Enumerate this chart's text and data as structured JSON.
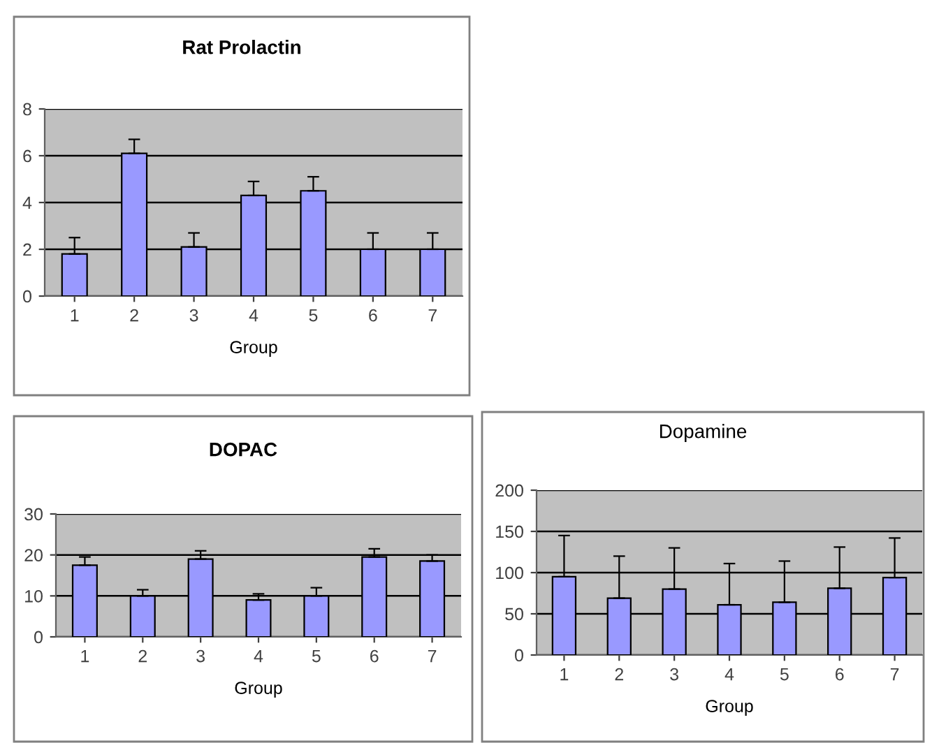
{
  "chart_data": [
    {
      "type": "bar",
      "title": "Rat Prolactin",
      "xlabel": "Group",
      "categories": [
        "1",
        "2",
        "3",
        "4",
        "5",
        "6",
        "7"
      ],
      "values": [
        1.8,
        6.1,
        2.1,
        4.3,
        4.5,
        2.0,
        2.0
      ],
      "errors": [
        [
          1.8,
          2.5
        ],
        [
          6.1,
          6.7
        ],
        [
          2.1,
          2.7
        ],
        [
          4.3,
          4.9
        ],
        [
          4.5,
          5.1
        ],
        [
          2.0,
          2.7
        ],
        [
          2.0,
          2.7
        ]
      ],
      "color": "#9999ff",
      "ylim": [
        0,
        8
      ],
      "yticks": [
        0,
        2,
        4,
        6,
        8
      ],
      "grid": "y"
    },
    {
      "type": "bar",
      "title": "DOPAC",
      "xlabel": "Group",
      "categories": [
        "1",
        "2",
        "3",
        "4",
        "5",
        "6",
        "7"
      ],
      "values": [
        17.5,
        10,
        19,
        9,
        10,
        19.5,
        18.5
      ],
      "errors": [
        [
          17.5,
          19.5
        ],
        [
          10,
          11.5
        ],
        [
          19,
          21
        ],
        [
          9,
          10.5
        ],
        [
          10,
          12
        ],
        [
          19.5,
          21.5
        ],
        [
          18.5,
          20
        ]
      ],
      "color": "#9999ff",
      "ylim": [
        0,
        30
      ],
      "yticks": [
        0,
        10,
        20,
        30
      ],
      "grid": "y"
    },
    {
      "type": "bar",
      "title": "Dopamine",
      "xlabel": "Group",
      "categories": [
        "1",
        "2",
        "3",
        "4",
        "5",
        "6",
        "7"
      ],
      "values": [
        95,
        69,
        80,
        61,
        64,
        81,
        94
      ],
      "errors": [
        [
          95,
          145
        ],
        [
          69,
          120
        ],
        [
          80,
          130
        ],
        [
          61,
          111
        ],
        [
          64,
          114
        ],
        [
          81,
          131
        ],
        [
          94,
          142
        ]
      ],
      "color": "#9999ff",
      "ylim": [
        0,
        200
      ],
      "yticks": [
        0,
        50,
        100,
        150,
        200
      ],
      "grid": "y"
    }
  ]
}
